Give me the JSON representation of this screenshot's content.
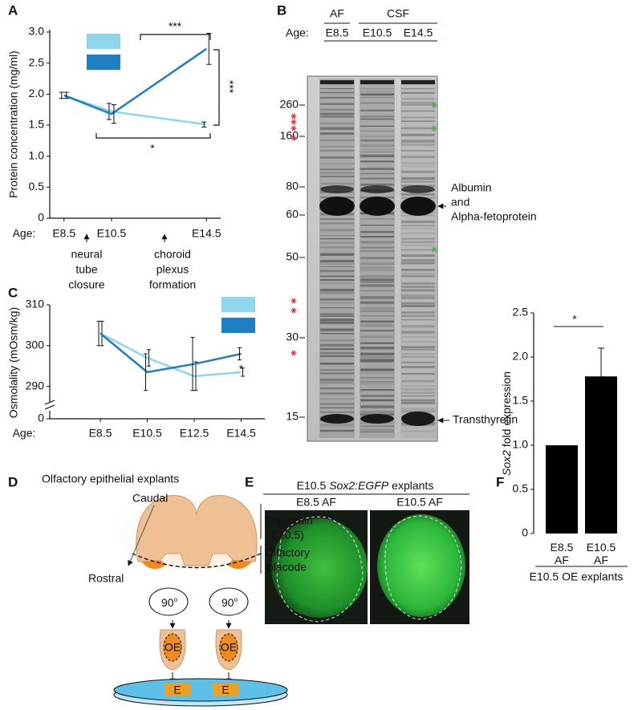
{
  "panels": [
    "A",
    "B",
    "C",
    "D",
    "E",
    "F"
  ],
  "chart_data": [
    {
      "type": "line",
      "ylabel": "Protein concentration (mg/ml)",
      "x_prefix": "Age:",
      "x": [
        8.5,
        10.5,
        14.5
      ],
      "xlim": [
        7.9,
        15.1
      ],
      "xticks": [
        {
          "value": 8.5,
          "label": "E8.5"
        },
        {
          "value": 10.5,
          "label": "E10.5"
        },
        {
          "value": 14.5,
          "label": "E14.5"
        }
      ],
      "ylim": [
        0,
        3
      ],
      "yticks": [
        0,
        0.5,
        {
          "value": 1,
          "label": "1.0"
        },
        1.5,
        {
          "value": 2,
          "label": "2.0"
        },
        2.5,
        {
          "value": 3,
          "label": "3.0"
        }
      ],
      "series": [
        {
          "color": "#8fd5ec",
          "values": [
            1.98,
            1.72,
            1.51
          ],
          "errors": [
            0.05,
            0.13,
            0.04
          ]
        },
        {
          "color": "#1f7fc0",
          "values": [
            1.98,
            1.68,
            2.73
          ],
          "errors": [
            0.05,
            0.15,
            0.25
          ]
        }
      ],
      "annotations": [
        [
          "neural",
          "tube",
          "closure"
        ],
        [
          "choroid",
          "plexus",
          "formation"
        ]
      ],
      "significance": [
        "***",
        "***",
        "*"
      ]
    },
    {
      "type": "line",
      "ylabel": "Osmolality (mOsm/kg)",
      "x_prefix": "Age:",
      "categories": [
        "E8.5",
        "E10.5",
        "E12.5",
        "E14.5"
      ],
      "ylim": [
        286,
        310
      ],
      "yticks": [
        0,
        290,
        300,
        310
      ],
      "y_break": true,
      "series": [
        {
          "color": "#8fd5ec",
          "values": [
            303,
            297,
            292.5,
            293.5
          ],
          "errors": [
            3,
            2,
            3.5,
            1
          ]
        },
        {
          "color": "#1f7fc0",
          "values": [
            303,
            293.5,
            295.5,
            298
          ],
          "errors": [
            3,
            4.5,
            6.5,
            1.5
          ]
        }
      ],
      "significance": [
        "*"
      ]
    },
    {
      "type": "bar",
      "ylabel_gene": "Sox2",
      "ylabel": "fold expression",
      "xlabel": "E10.5 OE explants",
      "categories": [
        "E8.5 AF",
        "E10.5 AF"
      ],
      "values": [
        1,
        1.78
      ],
      "errors": [
        null,
        0.32
      ],
      "color": "#000000",
      "ylim": [
        0,
        2.5
      ],
      "yticks": [
        0,
        0.5,
        {
          "value": 1,
          "label": "1.0"
        },
        1.5,
        {
          "value": 2,
          "label": "2.0"
        },
        2.5
      ],
      "significance": [
        "*"
      ]
    }
  ],
  "gel": {
    "groups": [
      "AF",
      "CSF"
    ],
    "age_label": "Age:",
    "lanes": [
      "E8.5",
      "E10.5",
      "E14.5"
    ],
    "markers": [
      260,
      160,
      80,
      60,
      50,
      30,
      15
    ],
    "annotations": [
      [
        "Albumin",
        "and",
        "Alpha-fetoprotein"
      ],
      [
        "Transthyretin"
      ]
    ]
  },
  "diagram": {
    "title": "Olfactory epithelial explants",
    "caudal": "Caudal",
    "rostral": "Rostral",
    "forebrain": [
      "Forebrain",
      "(E10.5)"
    ],
    "placode": [
      "Olfactory",
      "placode"
    ],
    "angle": "90",
    "angle_unit": "o",
    "oe": "OE",
    "explant": "E"
  },
  "explants": {
    "title": [
      "E10.5",
      "Sox2:EGFP",
      "explants"
    ],
    "images": [
      "E8.5 AF",
      "E10.5 AF"
    ]
  }
}
